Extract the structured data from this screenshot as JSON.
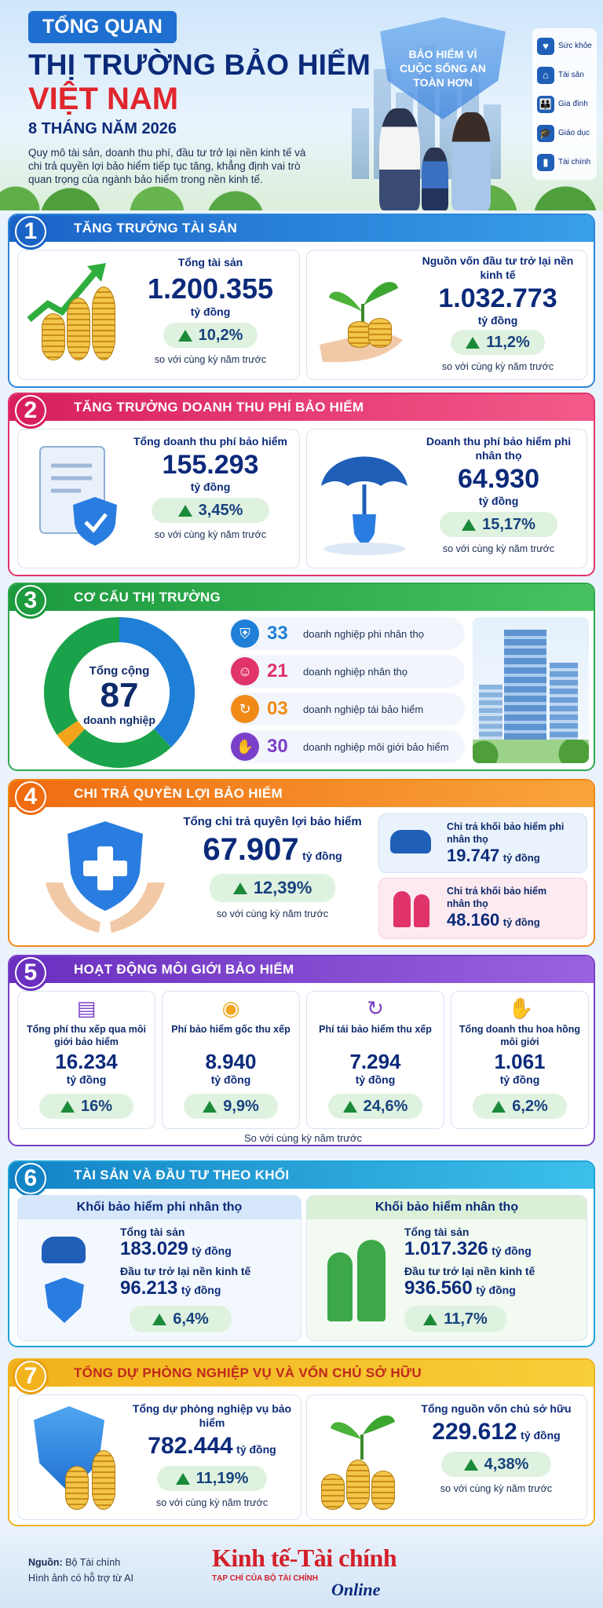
{
  "header": {
    "tag": "TỔNG QUAN",
    "title_line1": "THỊ TRƯỜNG BẢO HIỂM",
    "title_line2": "VIỆT NAM",
    "period": "8 THÁNG NĂM 2026",
    "intro": "Quy mô tài sản, doanh thu phí, đầu tư trở lại nền kinh tế và chi trả quyền lợi bảo hiểm tiếp tục tăng, khẳng định vai trò quan trọng của ngành bảo hiểm trong nền kinh tế.",
    "shield_text": "BẢO HIỂM VÌ CUỘC SỐNG AN TOÀN HƠN",
    "side_menu": [
      {
        "label": "Sức khỏe",
        "icon": "heart-hand-icon"
      },
      {
        "label": "Tài sản",
        "icon": "house-icon"
      },
      {
        "label": "Gia đình",
        "icon": "family-icon"
      },
      {
        "label": "Giáo dục",
        "icon": "graduation-cap-icon"
      },
      {
        "label": "Tài chính",
        "icon": "bar-chart-icon"
      }
    ]
  },
  "compare_text": "so với cùng kỳ năm trước",
  "s1": {
    "num": "1",
    "title": "TĂNG TRƯỞNG TÀI SẢN",
    "a": {
      "label": "Tổng tài sản",
      "value": "1.200.355",
      "unit": "tỷ đồng",
      "growth": "10,2%"
    },
    "b": {
      "label": "Nguồn vốn đầu tư trở lại nền kinh tế",
      "value": "1.032.773",
      "unit": "tỷ đồng",
      "growth": "11,2%"
    }
  },
  "s2": {
    "num": "2",
    "title": "TĂNG TRƯỞNG DOANH THU PHÍ BẢO HIỂM",
    "a": {
      "label": "Tổng doanh thu phí bảo hiểm",
      "value": "155.293",
      "unit": "tỷ đồng",
      "growth": "3,45%"
    },
    "b": {
      "label": "Doanh thu phí bảo hiểm phi nhân thọ",
      "value": "64.930",
      "unit": "tỷ đồng",
      "growth": "15,17%"
    }
  },
  "s3": {
    "num": "3",
    "title": "CƠ CẤU THỊ TRƯỜNG",
    "total_label": "Tổng cộng",
    "total": "87",
    "total_unit": "doanh nghiệp",
    "items": [
      {
        "count": "33",
        "label": "doanh nghiệp phi nhân thọ",
        "color": "#1f7fd6",
        "icon": "shield-icon",
        "value": 33
      },
      {
        "count": "21",
        "label": "doanh nghiệp nhân thọ",
        "color": "#e0336a",
        "icon": "family-icon",
        "value": 21
      },
      {
        "count": "03",
        "label": "doanh nghiệp tái bảo hiểm",
        "color": "#f08a16",
        "icon": "refresh-icon",
        "value": 3
      },
      {
        "count": "30",
        "label": "doanh nghiệp môi giới bảo hiểm",
        "color": "#7a3fc8",
        "icon": "handshake-icon",
        "value": 30
      }
    ],
    "donut_colors": [
      "#1f7fd6",
      "#1aa34a",
      "#f2a51c",
      "#1aa34a"
    ]
  },
  "s4": {
    "num": "4",
    "title": "CHI TRẢ QUYỀN LỢI BẢO HIỂM",
    "main": {
      "label": "Tổng chi trả quyền lợi bảo hiểm",
      "value": "67.907",
      "unit": "tỷ đồng",
      "growth": "12,39%"
    },
    "a": {
      "label": "Chi trả khối bảo hiểm phi nhân thọ",
      "value": "19.747",
      "unit": "tỷ đồng"
    },
    "b": {
      "label": "Chi trả khối bảo hiểm nhân thọ",
      "value": "48.160",
      "unit": "tỷ đồng"
    }
  },
  "s5": {
    "num": "5",
    "title": "HOẠT ĐỘNG MÔI GIỚI BẢO HIỂM",
    "items": [
      {
        "label": "Tổng phí thu xếp qua môi giới bảo hiểm",
        "value": "16.234",
        "unit": "tỷ đồng",
        "growth": "16%",
        "icon": "document-icon"
      },
      {
        "label": "Phí bảo hiểm gốc thu xếp",
        "value": "8.940",
        "unit": "tỷ đồng",
        "growth": "9,9%",
        "icon": "coins-icon"
      },
      {
        "label": "Phí tái bảo hiểm thu xếp",
        "value": "7.294",
        "unit": "tỷ đồng",
        "growth": "24,6%",
        "icon": "refresh-icon"
      },
      {
        "label": "Tổng doanh thu hoa hồng môi giới",
        "value": "1.061",
        "unit": "tỷ đồng",
        "growth": "6,2%",
        "icon": "handshake-icon"
      }
    ],
    "compare": "So với cùng kỳ năm trước"
  },
  "s6": {
    "num": "6",
    "title": "TÀI SẢN VÀ ĐẦU TƯ THEO KHỐI",
    "a": {
      "title": "Khối bảo hiểm phi nhân thọ",
      "asset_label": "Tổng tài sản",
      "asset": "183.029",
      "invest_label": "Đầu tư trở lại nền kinh tế",
      "invest": "96.213",
      "unit": "tỷ đồng",
      "growth": "6,4%"
    },
    "b": {
      "title": "Khối bảo hiểm nhân thọ",
      "asset_label": "Tổng tài sản",
      "asset": "1.017.326",
      "invest_label": "Đầu tư trở lại nền kinh tế",
      "invest": "936.560",
      "unit": "tỷ đồng",
      "growth": "11,7%"
    }
  },
  "s7": {
    "num": "7",
    "title": "TỔNG DỰ PHÒNG NGHIỆP VỤ VÀ VỐN CHỦ SỞ HỮU",
    "a": {
      "label": "Tổng dự phòng nghiệp vụ bảo hiểm",
      "value": "782.444",
      "unit": "tỷ đồng",
      "growth": "11,19%"
    },
    "b": {
      "label": "Tổng nguồn vốn chủ sở hữu",
      "value": "229.612",
      "unit": "tỷ đồng",
      "growth": "4,38%"
    }
  },
  "footer": {
    "source_label": "Nguồn:",
    "source": "Bộ Tài chính",
    "note": "Hình ảnh có hỗ trợ từ AI",
    "brand1": "Kinh tế",
    "brand_dash": "-",
    "brand2": "Tài chính",
    "brand_sub": "TẠP CHÍ CỦA BỘ TÀI CHÍNH",
    "brand_online": "Online"
  }
}
